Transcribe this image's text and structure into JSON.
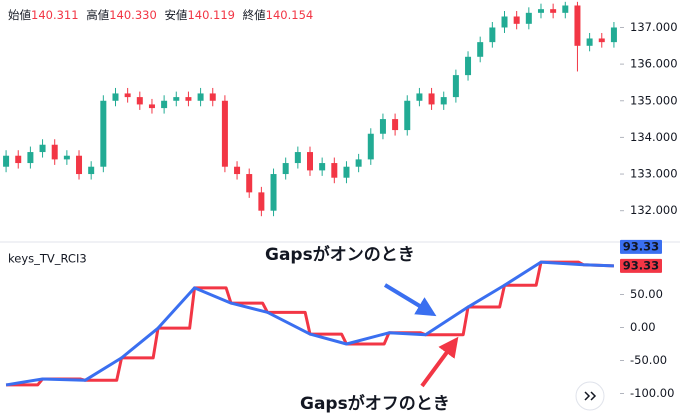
{
  "chart_data": [
    {
      "type": "candlestick",
      "header": [
        {
          "label": "始値",
          "value": "140.311"
        },
        {
          "label": "高値",
          "value": "140.330"
        },
        {
          "label": "安値",
          "value": "140.119"
        },
        {
          "label": "終値",
          "value": "140.154"
        }
      ],
      "up_color": "#22ab94",
      "down_color": "#f23645",
      "xlim": [
        -0.5,
        50.5
      ],
      "open": [
        133.2,
        133.5,
        133.3,
        133.6,
        133.8,
        133.4,
        133.5,
        133.0,
        133.2,
        135.0,
        135.2,
        135.1,
        134.9,
        134.8,
        135.0,
        135.1,
        135.0,
        135.2,
        135.0,
        133.2,
        133.0,
        132.5,
        132.0,
        133.0,
        133.3,
        133.6,
        133.1,
        133.3,
        132.9,
        133.2,
        133.4,
        134.1,
        134.5,
        134.2,
        135.0,
        135.2,
        134.9,
        135.1,
        135.7,
        136.2,
        136.6,
        137.0,
        137.3,
        137.1,
        137.4,
        137.5,
        137.4,
        137.6,
        136.5,
        136.7,
        136.6
      ],
      "high": [
        133.65,
        133.65,
        133.75,
        133.95,
        133.95,
        133.65,
        133.65,
        133.35,
        135.15,
        135.35,
        135.35,
        135.25,
        135.05,
        135.15,
        135.25,
        135.25,
        135.35,
        135.35,
        135.15,
        133.35,
        133.15,
        132.65,
        133.15,
        133.45,
        133.75,
        133.75,
        133.45,
        133.45,
        133.35,
        133.55,
        134.25,
        134.65,
        134.65,
        135.15,
        135.35,
        135.35,
        135.25,
        135.85,
        136.35,
        136.75,
        137.15,
        137.45,
        137.45,
        137.55,
        137.65,
        137.65,
        137.7,
        137.7,
        136.85,
        136.85,
        137.15
      ],
      "low": [
        133.05,
        133.15,
        133.15,
        133.45,
        133.25,
        133.25,
        132.85,
        132.85,
        133.05,
        134.85,
        134.95,
        134.75,
        134.65,
        134.65,
        134.85,
        134.85,
        134.85,
        134.85,
        133.05,
        132.85,
        132.35,
        131.85,
        131.85,
        132.85,
        133.15,
        132.95,
        132.95,
        132.75,
        132.75,
        133.05,
        133.25,
        133.95,
        134.05,
        134.05,
        134.85,
        134.75,
        134.75,
        134.95,
        135.55,
        136.05,
        136.45,
        136.85,
        136.95,
        136.95,
        137.25,
        137.25,
        137.25,
        135.8,
        136.35,
        136.45,
        136.45
      ],
      "close": [
        133.5,
        133.3,
        133.6,
        133.8,
        133.4,
        133.5,
        133.0,
        133.2,
        135.0,
        135.2,
        135.1,
        134.9,
        134.8,
        135.0,
        135.1,
        135.0,
        135.2,
        135.0,
        133.2,
        133.0,
        132.5,
        132.0,
        133.0,
        133.3,
        133.6,
        133.1,
        133.3,
        132.9,
        133.2,
        133.4,
        134.1,
        134.5,
        134.2,
        135.0,
        135.2,
        134.9,
        135.1,
        135.7,
        136.2,
        136.6,
        137.0,
        137.3,
        137.1,
        137.4,
        137.5,
        137.4,
        137.6,
        136.5,
        136.7,
        136.6,
        137.0
      ],
      "ylim": [
        131.2,
        137.75
      ],
      "yticks": [
        {
          "value": 132,
          "label": "132.000"
        },
        {
          "value": 133,
          "label": "133.000"
        },
        {
          "value": 134,
          "label": "134.000"
        },
        {
          "value": 135,
          "label": "135.000"
        },
        {
          "value": 136,
          "label": "136.000"
        },
        {
          "value": 137,
          "label": "137.000"
        }
      ]
    },
    {
      "type": "line",
      "title": "keys_TV_RCI3",
      "xlim": [
        -0.5,
        50.5
      ],
      "ylim": [
        -125,
        125
      ],
      "yticks": [
        {
          "value": 50,
          "label": "50.00"
        },
        {
          "value": 0,
          "label": "0.00"
        },
        {
          "value": -50,
          "label": "-50.00"
        },
        {
          "value": -100,
          "label": "-100.00"
        }
      ],
      "annotations": [
        "Gapsがオンのとき",
        "Gapsがオフのとき"
      ],
      "series": [
        {
          "color": "#f23645",
          "x": [
            0,
            2.6,
            3,
            6.1,
            6.5,
            9.1,
            9.5,
            12.1,
            12.5,
            15.1,
            15.5,
            18.1,
            18.5,
            21.1,
            21.5,
            24.6,
            25,
            27.6,
            28,
            31.1,
            31.5,
            34.1,
            34.5,
            37.6,
            38,
            40.6,
            41,
            43.6,
            44,
            47.1,
            47.5,
            50
          ],
          "values": [
            -87,
            -87,
            -78,
            -78,
            -80,
            -80,
            -46,
            -46,
            -1,
            -1,
            60,
            60,
            37,
            37,
            23,
            23,
            -10,
            -10,
            -25,
            -25,
            -8,
            -8,
            -11,
            -11,
            31,
            31,
            64,
            64,
            99,
            99,
            95,
            93.33
          ]
        },
        {
          "color": "#3a6ff0",
          "x": [
            0,
            3,
            6.5,
            9.5,
            12.5,
            15.5,
            18.5,
            21.5,
            25,
            28,
            31.5,
            34.5,
            38,
            41,
            44,
            47.5,
            50
          ],
          "values": [
            -87,
            -78,
            -80,
            -46,
            -1,
            60,
            37,
            23,
            -10,
            -25,
            -8,
            -11,
            31,
            64,
            99,
            95,
            93.33
          ]
        }
      ]
    }
  ]
}
